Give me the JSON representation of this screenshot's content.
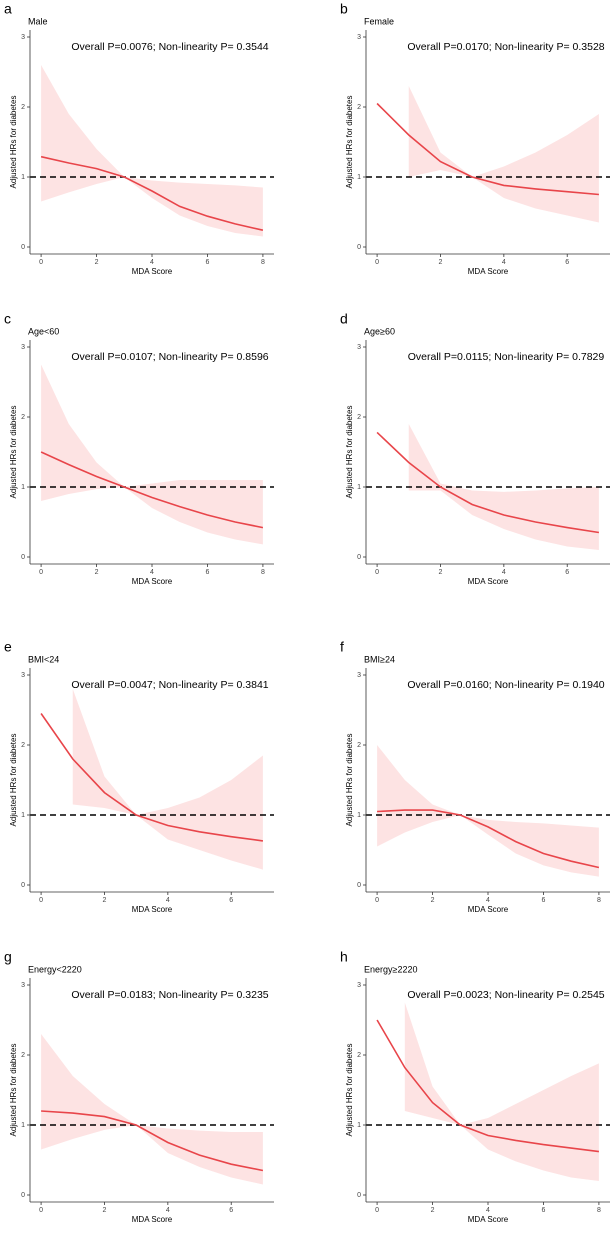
{
  "chart_data": [
    {
      "type": "line",
      "panel_label": "a",
      "title": "Male",
      "annotation": "Overall P=0.0076; Non-linearity P= 0.3544",
      "xlabel": "MDA Score",
      "ylabel": "Adjusted HRs for diabetes",
      "x": [
        0,
        1,
        2,
        3,
        4,
        5,
        6,
        7,
        8
      ],
      "values": [
        1.29,
        1.2,
        1.12,
        1.0,
        0.8,
        0.58,
        0.44,
        0.33,
        0.24
      ],
      "lower": [
        0.65,
        0.78,
        0.9,
        1.0,
        0.7,
        0.45,
        0.3,
        0.2,
        0.15
      ],
      "upper": [
        2.6,
        1.9,
        1.4,
        1.0,
        0.95,
        0.92,
        0.9,
        0.88,
        0.85
      ],
      "color": "#e8454a",
      "band_color": "#fde3e3",
      "reference_line": 1,
      "xlim": [
        -0.4,
        8.4
      ],
      "xticks": [
        0,
        2,
        4,
        6,
        8
      ],
      "ylim": [
        -0.1,
        3.1
      ],
      "yticks": [
        0,
        1,
        2,
        3
      ]
    },
    {
      "type": "line",
      "panel_label": "b",
      "title": "Female",
      "annotation": "Overall P=0.0170; Non-linearity P= 0.3528",
      "xlabel": "MDA Score",
      "ylabel": "Adjusted HRs for diabetes",
      "x": [
        0,
        1,
        2,
        3,
        4,
        5,
        6,
        7
      ],
      "values": [
        2.05,
        1.6,
        1.22,
        1.0,
        0.88,
        0.83,
        0.79,
        0.75
      ],
      "lower": [
        null,
        1.0,
        1.1,
        1.0,
        0.7,
        0.55,
        0.45,
        0.35
      ],
      "upper": [
        null,
        2.3,
        1.35,
        1.0,
        1.15,
        1.35,
        1.6,
        1.9
      ],
      "color": "#e8454a",
      "band_color": "#fde3e3",
      "reference_line": 1,
      "xlim": [
        -0.35,
        7.35
      ],
      "xticks": [
        0,
        2,
        4,
        6
      ],
      "ylim": [
        -0.1,
        3.1
      ],
      "yticks": [
        0,
        1,
        2,
        3
      ]
    },
    {
      "type": "line",
      "panel_label": "c",
      "title": "Age<60",
      "annotation": "Overall P=0.0107; Non-linearity P= 0.8596",
      "xlabel": "MDA Score",
      "ylabel": "Adjusted HRs for diabetes",
      "x": [
        0,
        1,
        2,
        3,
        4,
        5,
        6,
        7,
        8
      ],
      "values": [
        1.5,
        1.32,
        1.15,
        1.0,
        0.85,
        0.72,
        0.6,
        0.5,
        0.42
      ],
      "lower": [
        0.8,
        0.9,
        0.97,
        1.0,
        0.7,
        0.5,
        0.35,
        0.25,
        0.18
      ],
      "upper": [
        2.75,
        1.9,
        1.35,
        1.0,
        1.05,
        1.1,
        1.1,
        1.1,
        1.1
      ],
      "color": "#e8454a",
      "band_color": "#fde3e3",
      "reference_line": 1,
      "xlim": [
        -0.4,
        8.4
      ],
      "xticks": [
        0,
        2,
        4,
        6,
        8
      ],
      "ylim": [
        -0.1,
        3.1
      ],
      "yticks": [
        0,
        1,
        2,
        3
      ]
    },
    {
      "type": "line",
      "panel_label": "d",
      "title": "Age≥60",
      "annotation": "Overall P=0.0115; Non-linearity P= 0.7829",
      "xlabel": "MDA Score",
      "ylabel": "Adjusted HRs for diabetes",
      "x": [
        0,
        1,
        2,
        3,
        4,
        5,
        6,
        7
      ],
      "values": [
        1.78,
        1.35,
        1.0,
        0.75,
        0.6,
        0.5,
        0.42,
        0.35
      ],
      "lower": [
        null,
        0.95,
        0.95,
        0.6,
        0.4,
        0.25,
        0.15,
        0.1
      ],
      "upper": [
        null,
        1.9,
        1.05,
        0.95,
        0.93,
        0.95,
        0.98,
        1.0
      ],
      "color": "#e8454a",
      "band_color": "#fde3e3",
      "reference_line": 1,
      "xlim": [
        -0.35,
        7.35
      ],
      "xticks": [
        0,
        2,
        4,
        6
      ],
      "ylim": [
        -0.1,
        3.1
      ],
      "yticks": [
        0,
        1,
        2,
        3
      ]
    },
    {
      "type": "line",
      "panel_label": "e",
      "title": "BMI<24",
      "annotation": "Overall P=0.0047; Non-linearity P= 0.3841",
      "xlabel": "MDA Score",
      "ylabel": "Adjusted HRs for diabetes",
      "x": [
        0,
        1,
        2,
        3,
        4,
        5,
        6,
        7
      ],
      "values": [
        2.45,
        1.8,
        1.32,
        1.0,
        0.85,
        0.76,
        0.69,
        0.63
      ],
      "lower": [
        null,
        1.15,
        1.1,
        1.0,
        0.65,
        0.5,
        0.35,
        0.22
      ],
      "upper": [
        null,
        2.8,
        1.55,
        1.0,
        1.1,
        1.25,
        1.5,
        1.85
      ],
      "color": "#e8454a",
      "band_color": "#fde3e3",
      "reference_line": 1,
      "xlim": [
        -0.35,
        7.35
      ],
      "xticks": [
        0,
        2,
        4,
        6
      ],
      "ylim": [
        -0.1,
        3.1
      ],
      "yticks": [
        0,
        1,
        2,
        3
      ]
    },
    {
      "type": "line",
      "panel_label": "f",
      "title": "BMI≥24",
      "annotation": "Overall P=0.0160; Non-linearity P= 0.1940",
      "xlabel": "MDA Score",
      "ylabel": "Adjusted HRs for diabetes",
      "x": [
        0,
        1,
        2,
        3,
        4,
        5,
        6,
        7,
        8
      ],
      "values": [
        1.05,
        1.07,
        1.07,
        1.0,
        0.83,
        0.62,
        0.45,
        0.34,
        0.25
      ],
      "lower": [
        0.55,
        0.75,
        0.9,
        1.0,
        0.72,
        0.45,
        0.28,
        0.18,
        0.12
      ],
      "upper": [
        2.0,
        1.5,
        1.15,
        1.0,
        0.93,
        0.9,
        0.88,
        0.85,
        0.82
      ],
      "color": "#e8454a",
      "band_color": "#fde3e3",
      "reference_line": 1,
      "xlim": [
        -0.4,
        8.4
      ],
      "xticks": [
        0,
        2,
        4,
        6,
        8
      ],
      "ylim": [
        -0.1,
        3.1
      ],
      "yticks": [
        0,
        1,
        2,
        3
      ]
    },
    {
      "type": "line",
      "panel_label": "g",
      "title": "Energy<2220",
      "annotation": "Overall P=0.0183; Non-linearity P= 0.3235",
      "xlabel": "MDA Score",
      "ylabel": "Adjusted HRs for diabetes",
      "x": [
        0,
        1,
        2,
        3,
        4,
        5,
        6,
        7
      ],
      "values": [
        1.2,
        1.17,
        1.12,
        1.0,
        0.75,
        0.57,
        0.44,
        0.35
      ],
      "lower": [
        0.65,
        0.8,
        0.93,
        1.0,
        0.6,
        0.4,
        0.25,
        0.15
      ],
      "upper": [
        2.3,
        1.7,
        1.3,
        1.0,
        0.95,
        0.92,
        0.9,
        0.9
      ],
      "color": "#e8454a",
      "band_color": "#fde3e3",
      "reference_line": 1,
      "xlim": [
        -0.35,
        7.35
      ],
      "xticks": [
        0,
        2,
        4,
        6
      ],
      "ylim": [
        -0.1,
        3.1
      ],
      "yticks": [
        0,
        1,
        2,
        3
      ]
    },
    {
      "type": "line",
      "panel_label": "h",
      "title": "Energy≥2220",
      "annotation": "Overall P=0.0023; Non-linearity P= 0.2545",
      "xlabel": "MDA Score",
      "ylabel": "Adjusted HRs for diabetes",
      "x": [
        0,
        1,
        2,
        3,
        4,
        5,
        6,
        7,
        8
      ],
      "values": [
        2.5,
        1.82,
        1.32,
        1.0,
        0.85,
        0.78,
        0.72,
        0.67,
        0.62
      ],
      "lower": [
        null,
        1.2,
        1.1,
        1.0,
        0.65,
        0.48,
        0.35,
        0.25,
        0.2
      ],
      "upper": [
        null,
        2.75,
        1.55,
        1.0,
        1.1,
        1.3,
        1.5,
        1.7,
        1.88
      ],
      "color": "#e8454a",
      "band_color": "#fde3e3",
      "reference_line": 1,
      "xlim": [
        -0.4,
        8.4
      ],
      "xticks": [
        0,
        2,
        4,
        6,
        8
      ],
      "ylim": [
        -0.1,
        3.1
      ],
      "yticks": [
        0,
        1,
        2,
        3
      ]
    }
  ]
}
